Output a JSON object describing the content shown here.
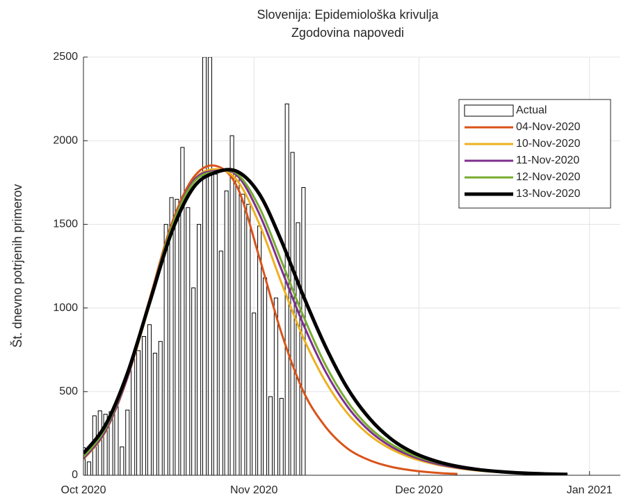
{
  "chart_data": {
    "type": "bar",
    "title": "Slovenija: Epidemiološka krivulja",
    "subtitle": "Zgodovina napovedi",
    "y_label": "Št. dnevno potrjenih primerov",
    "xlim": [
      0,
      97.6
    ],
    "ylim": [
      0,
      2500
    ],
    "xticks": [
      {
        "value": 0,
        "label": "Oct 2020"
      },
      {
        "value": 31,
        "label": "Nov 2020"
      },
      {
        "value": 61,
        "label": "Dec 2020"
      },
      {
        "value": 92,
        "label": "Jan 2021"
      }
    ],
    "yticks": [
      0,
      500,
      1000,
      1500,
      2000,
      2500
    ],
    "grid": true,
    "legend": "upper right",
    "series": [
      {
        "name": "Actual",
        "type": "bar",
        "color": "#ffffff",
        "x": [
          0,
          1,
          2,
          3,
          4,
          5,
          6,
          7,
          8,
          9,
          10,
          11,
          12,
          13,
          14,
          15,
          16,
          17,
          18,
          19,
          20,
          21,
          22,
          23,
          24,
          25,
          26,
          27,
          28,
          29,
          30,
          31,
          32,
          33,
          34,
          35,
          36,
          37,
          38,
          39,
          40
        ],
        "values": [
          165,
          80,
          355,
          385,
          365,
          380,
          410,
          170,
          390,
          700,
          745,
          830,
          900,
          730,
          800,
          1500,
          1660,
          1650,
          1960,
          1600,
          1120,
          1500,
          2500,
          2500,
          1800,
          1340,
          1700,
          2030,
          1800,
          1680,
          1620,
          970,
          1490,
          1180,
          470,
          1060,
          460,
          2220,
          1930,
          1510,
          1720
        ]
      },
      {
        "name": "04-Nov-2020",
        "type": "line",
        "color": "#d95319",
        "x": [
          0,
          4,
          8,
          12,
          16,
          20,
          24,
          28,
          32,
          36,
          40,
          44,
          48,
          52,
          56,
          60,
          64,
          68
        ],
        "values": [
          100,
          270,
          600,
          1050,
          1500,
          1780,
          1850,
          1720,
          1300,
          850,
          500,
          290,
          160,
          90,
          50,
          28,
          15,
          8
        ]
      },
      {
        "name": "10-Nov-2020",
        "type": "line",
        "color": "#edb120",
        "x": [
          0,
          4,
          8,
          12,
          16,
          20,
          24,
          28,
          32,
          36,
          40,
          44,
          48,
          52,
          56,
          60,
          64,
          68,
          72,
          76,
          80,
          84
        ],
        "values": [
          95,
          260,
          580,
          1020,
          1480,
          1760,
          1830,
          1760,
          1500,
          1150,
          820,
          560,
          370,
          240,
          155,
          100,
          65,
          42,
          27,
          18,
          12,
          8
        ]
      },
      {
        "name": "11-Nov-2020",
        "type": "line",
        "color": "#7e2f8e",
        "x": [
          0,
          4,
          8,
          12,
          16,
          20,
          24,
          28,
          32,
          36,
          40,
          44,
          48,
          52,
          56,
          60,
          64,
          68,
          72,
          76,
          80,
          84
        ],
        "values": [
          100,
          265,
          585,
          1030,
          1480,
          1760,
          1820,
          1790,
          1560,
          1230,
          900,
          620,
          410,
          265,
          170,
          110,
          70,
          45,
          29,
          19,
          12,
          8
        ]
      },
      {
        "name": "12-Nov-2020",
        "type": "line",
        "color": "#77ac30",
        "x": [
          0,
          4,
          8,
          12,
          16,
          20,
          24,
          28,
          32,
          36,
          40,
          44,
          48,
          52,
          56,
          60,
          64,
          68,
          72,
          76,
          80,
          84
        ],
        "values": [
          110,
          280,
          600,
          1040,
          1480,
          1750,
          1815,
          1800,
          1600,
          1280,
          950,
          660,
          440,
          285,
          185,
          120,
          78,
          50,
          32,
          21,
          14,
          9
        ]
      },
      {
        "name": "13-Nov-2020",
        "type": "line",
        "color": "#000000",
        "x": [
          0,
          4,
          8,
          12,
          16,
          20,
          24,
          28,
          32,
          36,
          40,
          44,
          48,
          52,
          56,
          60,
          64,
          68,
          72,
          76,
          80,
          84,
          88
        ],
        "values": [
          130,
          300,
          610,
          1030,
          1450,
          1720,
          1810,
          1815,
          1680,
          1400,
          1070,
          770,
          520,
          340,
          215,
          135,
          85,
          53,
          33,
          21,
          13,
          8,
          5
        ]
      }
    ]
  }
}
